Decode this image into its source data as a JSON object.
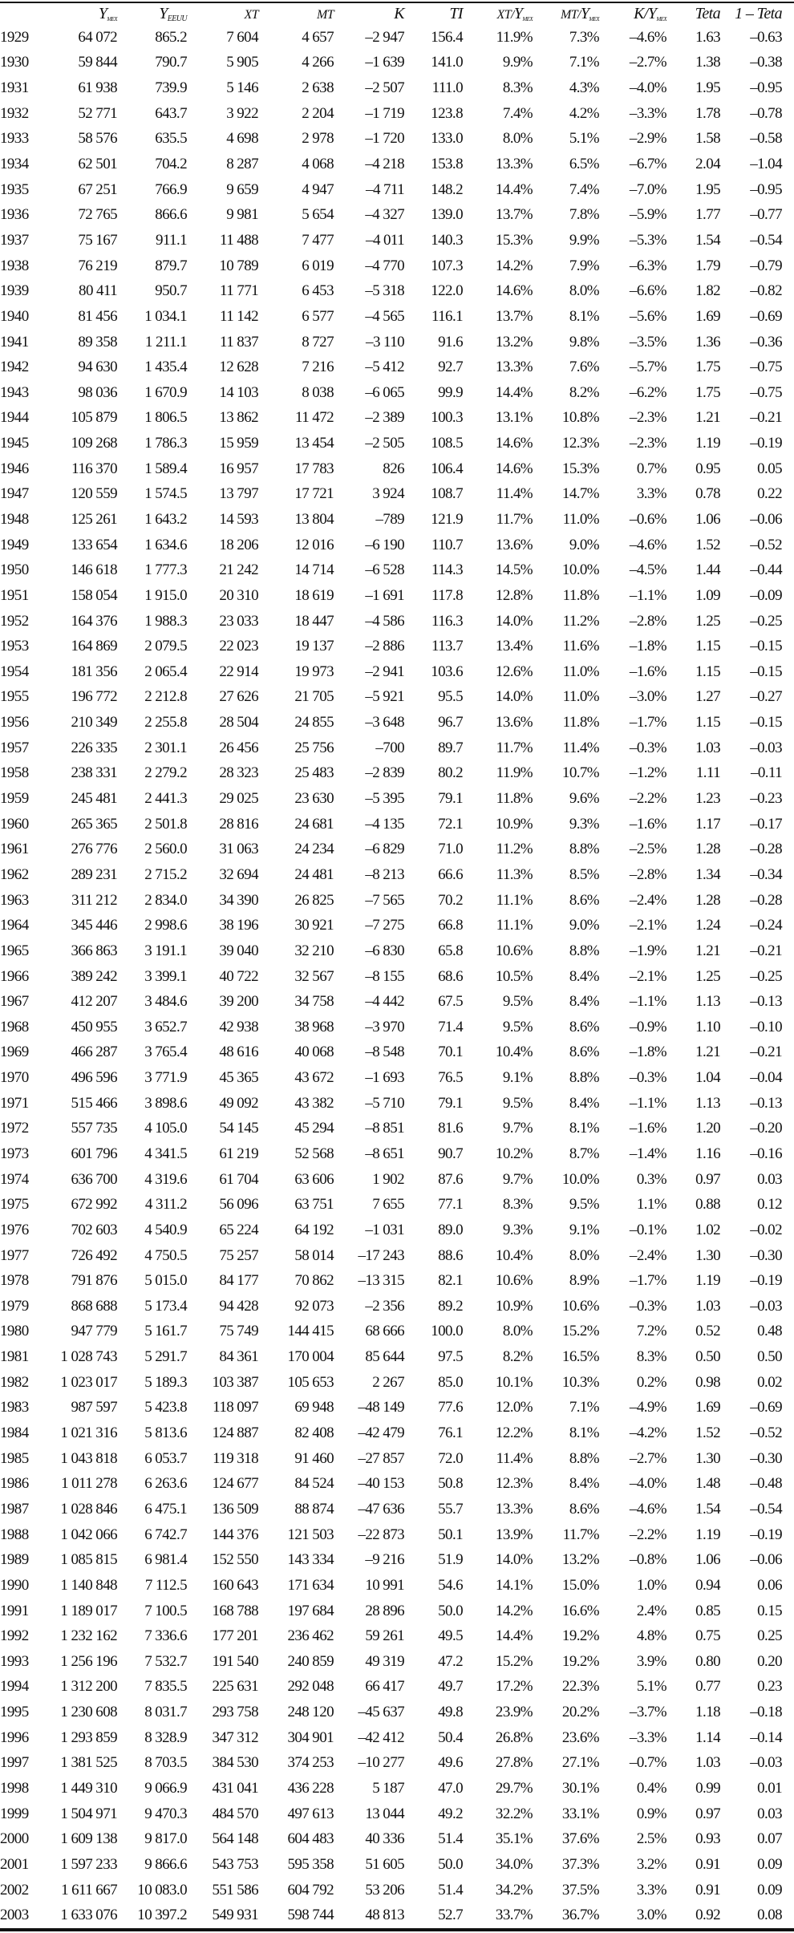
{
  "headers": {
    "year": "",
    "y_mex": {
      "main": "Y",
      "sub": "mex"
    },
    "y_eeuu": {
      "main": "Y",
      "sub": "EEUU"
    },
    "xt": "XT",
    "mt": "MT",
    "k": "K",
    "ti": "TI",
    "xt_y": {
      "pre": "XT/",
      "main": "Y",
      "sub": "mex"
    },
    "mt_y": {
      "pre": "MT/",
      "main": "Y",
      "sub": "mex"
    },
    "k_y": {
      "pre": "K/",
      "main": "Y",
      "sub": "mex"
    },
    "teta": "Teta",
    "one_minus_teta": "1 – Teta"
  },
  "rows": [
    [
      "1929",
      "64 072",
      "865.2",
      "7 604",
      "4 657",
      "–2 947",
      "156.4",
      "11.9%",
      "7.3%",
      "–4.6%",
      "1.63",
      "–0.63"
    ],
    [
      "1930",
      "59 844",
      "790.7",
      "5 905",
      "4 266",
      "–1 639",
      "141.0",
      "9.9%",
      "7.1%",
      "–2.7%",
      "1.38",
      "–0.38"
    ],
    [
      "1931",
      "61 938",
      "739.9",
      "5 146",
      "2 638",
      "–2 507",
      "111.0",
      "8.3%",
      "4.3%",
      "–4.0%",
      "1.95",
      "–0.95"
    ],
    [
      "1932",
      "52 771",
      "643.7",
      "3 922",
      "2 204",
      "–1 719",
      "123.8",
      "7.4%",
      "4.2%",
      "–3.3%",
      "1.78",
      "–0.78"
    ],
    [
      "1933",
      "58 576",
      "635.5",
      "4 698",
      "2 978",
      "–1 720",
      "133.0",
      "8.0%",
      "5.1%",
      "–2.9%",
      "1.58",
      "–0.58"
    ],
    [
      "1934",
      "62 501",
      "704.2",
      "8 287",
      "4 068",
      "–4 218",
      "153.8",
      "13.3%",
      "6.5%",
      "–6.7%",
      "2.04",
      "–1.04"
    ],
    [
      "1935",
      "67 251",
      "766.9",
      "9 659",
      "4 947",
      "–4 711",
      "148.2",
      "14.4%",
      "7.4%",
      "–7.0%",
      "1.95",
      "–0.95"
    ],
    [
      "1936",
      "72 765",
      "866.6",
      "9 981",
      "5 654",
      "–4 327",
      "139.0",
      "13.7%",
      "7.8%",
      "–5.9%",
      "1.77",
      "–0.77"
    ],
    [
      "1937",
      "75 167",
      "911.1",
      "11 488",
      "7 477",
      "–4 011",
      "140.3",
      "15.3%",
      "9.9%",
      "–5.3%",
      "1.54",
      "–0.54"
    ],
    [
      "1938",
      "76 219",
      "879.7",
      "10 789",
      "6 019",
      "–4 770",
      "107.3",
      "14.2%",
      "7.9%",
      "–6.3%",
      "1.79",
      "–0.79"
    ],
    [
      "1939",
      "80 411",
      "950.7",
      "11 771",
      "6 453",
      "–5 318",
      "122.0",
      "14.6%",
      "8.0%",
      "–6.6%",
      "1.82",
      "–0.82"
    ],
    [
      "1940",
      "81 456",
      "1 034.1",
      "11 142",
      "6 577",
      "–4 565",
      "116.1",
      "13.7%",
      "8.1%",
      "–5.6%",
      "1.69",
      "–0.69"
    ],
    [
      "1941",
      "89 358",
      "1 211.1",
      "11 837",
      "8 727",
      "–3 110",
      "91.6",
      "13.2%",
      "9.8%",
      "–3.5%",
      "1.36",
      "–0.36"
    ],
    [
      "1942",
      "94 630",
      "1 435.4",
      "12 628",
      "7 216",
      "–5 412",
      "92.7",
      "13.3%",
      "7.6%",
      "–5.7%",
      "1.75",
      "–0.75"
    ],
    [
      "1943",
      "98 036",
      "1 670.9",
      "14 103",
      "8 038",
      "–6 065",
      "99.9",
      "14.4%",
      "8.2%",
      "–6.2%",
      "1.75",
      "–0.75"
    ],
    [
      "1944",
      "105 879",
      "1 806.5",
      "13 862",
      "11 472",
      "–2 389",
      "100.3",
      "13.1%",
      "10.8%",
      "–2.3%",
      "1.21",
      "–0.21"
    ],
    [
      "1945",
      "109 268",
      "1 786.3",
      "15 959",
      "13 454",
      "–2 505",
      "108.5",
      "14.6%",
      "12.3%",
      "–2.3%",
      "1.19",
      "–0.19"
    ],
    [
      "1946",
      "116 370",
      "1 589.4",
      "16 957",
      "17 783",
      "826",
      "106.4",
      "14.6%",
      "15.3%",
      "0.7%",
      "0.95",
      "0.05"
    ],
    [
      "1947",
      "120 559",
      "1 574.5",
      "13 797",
      "17 721",
      "3 924",
      "108.7",
      "11.4%",
      "14.7%",
      "3.3%",
      "0.78",
      "0.22"
    ],
    [
      "1948",
      "125 261",
      "1 643.2",
      "14 593",
      "13 804",
      "–789",
      "121.9",
      "11.7%",
      "11.0%",
      "–0.6%",
      "1.06",
      "–0.06"
    ],
    [
      "1949",
      "133 654",
      "1 634.6",
      "18 206",
      "12 016",
      "–6 190",
      "110.7",
      "13.6%",
      "9.0%",
      "–4.6%",
      "1.52",
      "–0.52"
    ],
    [
      "1950",
      "146 618",
      "1 777.3",
      "21 242",
      "14 714",
      "–6 528",
      "114.3",
      "14.5%",
      "10.0%",
      "–4.5%",
      "1.44",
      "–0.44"
    ],
    [
      "1951",
      "158 054",
      "1 915.0",
      "20 310",
      "18 619",
      "–1 691",
      "117.8",
      "12.8%",
      "11.8%",
      "–1.1%",
      "1.09",
      "–0.09"
    ],
    [
      "1952",
      "164 376",
      "1 988.3",
      "23 033",
      "18 447",
      "–4 586",
      "116.3",
      "14.0%",
      "11.2%",
      "–2.8%",
      "1.25",
      "–0.25"
    ],
    [
      "1953",
      "164 869",
      "2 079.5",
      "22 023",
      "19 137",
      "–2 886",
      "113.7",
      "13.4%",
      "11.6%",
      "–1.8%",
      "1.15",
      "–0.15"
    ],
    [
      "1954",
      "181 356",
      "2 065.4",
      "22 914",
      "19 973",
      "–2 941",
      "103.6",
      "12.6%",
      "11.0%",
      "–1.6%",
      "1.15",
      "–0.15"
    ],
    [
      "1955",
      "196 772",
      "2 212.8",
      "27 626",
      "21 705",
      "–5 921",
      "95.5",
      "14.0%",
      "11.0%",
      "–3.0%",
      "1.27",
      "–0.27"
    ],
    [
      "1956",
      "210 349",
      "2 255.8",
      "28 504",
      "24 855",
      "–3 648",
      "96.7",
      "13.6%",
      "11.8%",
      "–1.7%",
      "1.15",
      "–0.15"
    ],
    [
      "1957",
      "226 335",
      "2 301.1",
      "26 456",
      "25 756",
      "–700",
      "89.7",
      "11.7%",
      "11.4%",
      "–0.3%",
      "1.03",
      "–0.03"
    ],
    [
      "1958",
      "238 331",
      "2 279.2",
      "28 323",
      "25 483",
      "–2 839",
      "80.2",
      "11.9%",
      "10.7%",
      "–1.2%",
      "1.11",
      "–0.11"
    ],
    [
      "1959",
      "245 481",
      "2 441.3",
      "29 025",
      "23 630",
      "–5 395",
      "79.1",
      "11.8%",
      "9.6%",
      "–2.2%",
      "1.23",
      "–0.23"
    ],
    [
      "1960",
      "265 365",
      "2 501.8",
      "28 816",
      "24 681",
      "–4 135",
      "72.1",
      "10.9%",
      "9.3%",
      "–1.6%",
      "1.17",
      "–0.17"
    ],
    [
      "1961",
      "276 776",
      "2 560.0",
      "31 063",
      "24 234",
      "–6 829",
      "71.0",
      "11.2%",
      "8.8%",
      "–2.5%",
      "1.28",
      "–0.28"
    ],
    [
      "1962",
      "289 231",
      "2 715.2",
      "32 694",
      "24 481",
      "–8 213",
      "66.6",
      "11.3%",
      "8.5%",
      "–2.8%",
      "1.34",
      "–0.34"
    ],
    [
      "1963",
      "311 212",
      "2 834.0",
      "34 390",
      "26 825",
      "–7 565",
      "70.2",
      "11.1%",
      "8.6%",
      "–2.4%",
      "1.28",
      "–0.28"
    ],
    [
      "1964",
      "345 446",
      "2 998.6",
      "38 196",
      "30 921",
      "–7 275",
      "66.8",
      "11.1%",
      "9.0%",
      "–2.1%",
      "1.24",
      "–0.24"
    ],
    [
      "1965",
      "366 863",
      "3 191.1",
      "39 040",
      "32 210",
      "–6 830",
      "65.8",
      "10.6%",
      "8.8%",
      "–1.9%",
      "1.21",
      "–0.21"
    ],
    [
      "1966",
      "389 242",
      "3 399.1",
      "40 722",
      "32 567",
      "–8 155",
      "68.6",
      "10.5%",
      "8.4%",
      "–2.1%",
      "1.25",
      "–0.25"
    ],
    [
      "1967",
      "412 207",
      "3 484.6",
      "39 200",
      "34 758",
      "–4 442",
      "67.5",
      "9.5%",
      "8.4%",
      "–1.1%",
      "1.13",
      "–0.13"
    ],
    [
      "1968",
      "450 955",
      "3 652.7",
      "42 938",
      "38 968",
      "–3 970",
      "71.4",
      "9.5%",
      "8.6%",
      "–0.9%",
      "1.10",
      "–0.10"
    ],
    [
      "1969",
      "466 287",
      "3 765.4",
      "48 616",
      "40 068",
      "–8 548",
      "70.1",
      "10.4%",
      "8.6%",
      "–1.8%",
      "1.21",
      "–0.21"
    ],
    [
      "1970",
      "496 596",
      "3 771.9",
      "45 365",
      "43 672",
      "–1 693",
      "76.5",
      "9.1%",
      "8.8%",
      "–0.3%",
      "1.04",
      "–0.04"
    ],
    [
      "1971",
      "515 466",
      "3 898.6",
      "49 092",
      "43 382",
      "–5 710",
      "79.1",
      "9.5%",
      "8.4%",
      "–1.1%",
      "1.13",
      "–0.13"
    ],
    [
      "1972",
      "557 735",
      "4 105.0",
      "54 145",
      "45 294",
      "–8 851",
      "81.6",
      "9.7%",
      "8.1%",
      "–1.6%",
      "1.20",
      "–0.20"
    ],
    [
      "1973",
      "601 796",
      "4 341.5",
      "61 219",
      "52 568",
      "–8 651",
      "90.7",
      "10.2%",
      "8.7%",
      "–1.4%",
      "1.16",
      "–0.16"
    ],
    [
      "1974",
      "636 700",
      "4 319.6",
      "61 704",
      "63 606",
      "1 902",
      "87.6",
      "9.7%",
      "10.0%",
      "0.3%",
      "0.97",
      "0.03"
    ],
    [
      "1975",
      "672 992",
      "4 311.2",
      "56 096",
      "63 751",
      "7 655",
      "77.1",
      "8.3%",
      "9.5%",
      "1.1%",
      "0.88",
      "0.12"
    ],
    [
      "1976",
      "702 603",
      "4 540.9",
      "65 224",
      "64 192",
      "–1 031",
      "89.0",
      "9.3%",
      "9.1%",
      "–0.1%",
      "1.02",
      "–0.02"
    ],
    [
      "1977",
      "726 492",
      "4 750.5",
      "75 257",
      "58 014",
      "–17 243",
      "88.6",
      "10.4%",
      "8.0%",
      "–2.4%",
      "1.30",
      "–0.30"
    ],
    [
      "1978",
      "791 876",
      "5 015.0",
      "84 177",
      "70 862",
      "–13 315",
      "82.1",
      "10.6%",
      "8.9%",
      "–1.7%",
      "1.19",
      "–0.19"
    ],
    [
      "1979",
      "868 688",
      "5 173.4",
      "94 428",
      "92 073",
      "–2 356",
      "89.2",
      "10.9%",
      "10.6%",
      "–0.3%",
      "1.03",
      "–0.03"
    ],
    [
      "1980",
      "947 779",
      "5 161.7",
      "75 749",
      "144 415",
      "68 666",
      "100.0",
      "8.0%",
      "15.2%",
      "7.2%",
      "0.52",
      "0.48"
    ],
    [
      "1981",
      "1 028 743",
      "5 291.7",
      "84 361",
      "170 004",
      "85 644",
      "97.5",
      "8.2%",
      "16.5%",
      "8.3%",
      "0.50",
      "0.50"
    ],
    [
      "1982",
      "1 023 017",
      "5 189.3",
      "103 387",
      "105 653",
      "2 267",
      "85.0",
      "10.1%",
      "10.3%",
      "0.2%",
      "0.98",
      "0.02"
    ],
    [
      "1983",
      "987 597",
      "5 423.8",
      "118 097",
      "69 948",
      "–48 149",
      "77.6",
      "12.0%",
      "7.1%",
      "–4.9%",
      "1.69",
      "–0.69"
    ],
    [
      "1984",
      "1 021 316",
      "5 813.6",
      "124 887",
      "82 408",
      "–42 479",
      "76.1",
      "12.2%",
      "8.1%",
      "–4.2%",
      "1.52",
      "–0.52"
    ],
    [
      "1985",
      "1 043 818",
      "6 053.7",
      "119 318",
      "91 460",
      "–27 857",
      "72.0",
      "11.4%",
      "8.8%",
      "–2.7%",
      "1.30",
      "–0.30"
    ],
    [
      "1986",
      "1 011 278",
      "6 263.6",
      "124 677",
      "84 524",
      "–40 153",
      "50.8",
      "12.3%",
      "8.4%",
      "–4.0%",
      "1.48",
      "–0.48"
    ],
    [
      "1987",
      "1 028 846",
      "6 475.1",
      "136 509",
      "88 874",
      "–47 636",
      "55.7",
      "13.3%",
      "8.6%",
      "–4.6%",
      "1.54",
      "–0.54"
    ],
    [
      "1988",
      "1 042 066",
      "6 742.7",
      "144 376",
      "121 503",
      "–22 873",
      "50.1",
      "13.9%",
      "11.7%",
      "–2.2%",
      "1.19",
      "–0.19"
    ],
    [
      "1989",
      "1 085 815",
      "6 981.4",
      "152 550",
      "143 334",
      "–9 216",
      "51.9",
      "14.0%",
      "13.2%",
      "–0.8%",
      "1.06",
      "–0.06"
    ],
    [
      "1990",
      "1 140 848",
      "7 112.5",
      "160 643",
      "171 634",
      "10 991",
      "54.6",
      "14.1%",
      "15.0%",
      "1.0%",
      "0.94",
      "0.06"
    ],
    [
      "1991",
      "1 189 017",
      "7 100.5",
      "168 788",
      "197 684",
      "28 896",
      "50.0",
      "14.2%",
      "16.6%",
      "2.4%",
      "0.85",
      "0.15"
    ],
    [
      "1992",
      "1 232 162",
      "7 336.6",
      "177 201",
      "236 462",
      "59 261",
      "49.5",
      "14.4%",
      "19.2%",
      "4.8%",
      "0.75",
      "0.25"
    ],
    [
      "1993",
      "1 256 196",
      "7 532.7",
      "191 540",
      "240 859",
      "49 319",
      "47.2",
      "15.2%",
      "19.2%",
      "3.9%",
      "0.80",
      "0.20"
    ],
    [
      "1994",
      "1 312 200",
      "7 835.5",
      "225 631",
      "292 048",
      "66 417",
      "49.7",
      "17.2%",
      "22.3%",
      "5.1%",
      "0.77",
      "0.23"
    ],
    [
      "1995",
      "1 230 608",
      "8 031.7",
      "293 758",
      "248 120",
      "–45 637",
      "49.8",
      "23.9%",
      "20.2%",
      "–3.7%",
      "1.18",
      "–0.18"
    ],
    [
      "1996",
      "1 293 859",
      "8 328.9",
      "347 312",
      "304 901",
      "–42 412",
      "50.4",
      "26.8%",
      "23.6%",
      "–3.3%",
      "1.14",
      "–0.14"
    ],
    [
      "1997",
      "1 381 525",
      "8 703.5",
      "384 530",
      "374 253",
      "–10 277",
      "49.6",
      "27.8%",
      "27.1%",
      "–0.7%",
      "1.03",
      "–0.03"
    ],
    [
      "1998",
      "1 449 310",
      "9 066.9",
      "431 041",
      "436 228",
      "5 187",
      "47.0",
      "29.7%",
      "30.1%",
      "0.4%",
      "0.99",
      "0.01"
    ],
    [
      "1999",
      "1 504 971",
      "9 470.3",
      "484 570",
      "497 613",
      "13 044",
      "49.2",
      "32.2%",
      "33.1%",
      "0.9%",
      "0.97",
      "0.03"
    ],
    [
      "2000",
      "1 609 138",
      "9 817.0",
      "564 148",
      "604 483",
      "40 336",
      "51.4",
      "35.1%",
      "37.6%",
      "2.5%",
      "0.93",
      "0.07"
    ],
    [
      "2001",
      "1 597 233",
      "9 866.6",
      "543 753",
      "595 358",
      "51 605",
      "50.0",
      "34.0%",
      "37.3%",
      "3.2%",
      "0.91",
      "0.09"
    ],
    [
      "2002",
      "1 611 667",
      "10 083.0",
      "551 586",
      "604 792",
      "53 206",
      "51.4",
      "34.2%",
      "37.5%",
      "3.3%",
      "0.91",
      "0.09"
    ],
    [
      "2003",
      "1 633 076",
      "10 397.2",
      "549 931",
      "598 744",
      "48 813",
      "52.7",
      "33.7%",
      "36.7%",
      "3.0%",
      "0.92",
      "0.08"
    ]
  ]
}
